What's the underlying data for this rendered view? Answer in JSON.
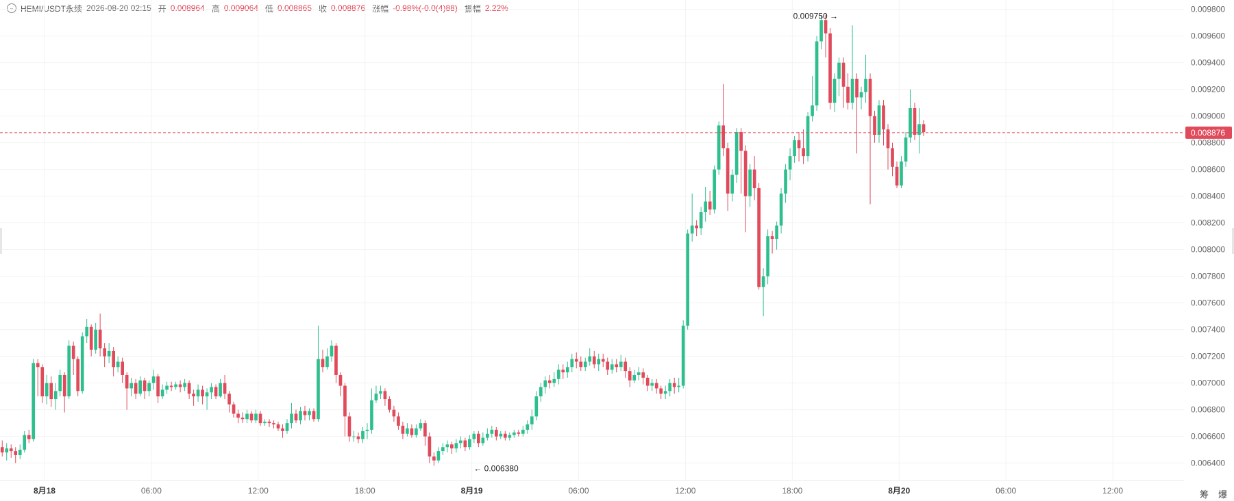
{
  "header": {
    "toggle_icon": "chevron-down-icon",
    "symbol": "HEMI/USDT永续",
    "datetime": "2026-08-20 02:15",
    "open_label": "开",
    "open": "0.008964",
    "high_label": "高",
    "high": "0.009064",
    "low_label": "低",
    "low": "0.008865",
    "close_label": "收",
    "close": "0.008876",
    "change_label": "涨幅",
    "change": "-0.98%(-0.0(4)88)",
    "amplitude_label": "振幅",
    "amplitude": "2.22%"
  },
  "bottom_right": {
    "label1": "筹",
    "label2": "爆"
  },
  "chart_data": {
    "type": "candlestick",
    "interval_minutes": 15,
    "y_axis_ticks": [
      "0.006400",
      "0.006600",
      "0.006800",
      "0.007000",
      "0.007200",
      "0.007400",
      "0.007600",
      "0.007800",
      "0.008000",
      "0.008200",
      "0.008400",
      "0.008600",
      "0.008800",
      "0.009000",
      "0.009200",
      "0.009400",
      "0.009600",
      "0.009800"
    ],
    "ylim": [
      0.00627,
      0.00987
    ],
    "x_axis_ticks": [
      {
        "label": "8月18",
        "time": "2026-08-18 00:00",
        "bold": true
      },
      {
        "label": "06:00",
        "time": "2026-08-18 06:00"
      },
      {
        "label": "12:00",
        "time": "2026-08-18 12:00"
      },
      {
        "label": "18:00",
        "time": "2026-08-18 18:00"
      },
      {
        "label": "8月19",
        "time": "2026-08-19 00:00",
        "bold": true
      },
      {
        "label": "06:00",
        "time": "2026-08-19 06:00"
      },
      {
        "label": "12:00",
        "time": "2026-08-19 12:00"
      },
      {
        "label": "18:00",
        "time": "2026-08-19 18:00"
      },
      {
        "label": "8月20",
        "time": "2026-08-20 00:00",
        "bold": true
      },
      {
        "label": "06:00",
        "time": "2026-08-20 06:00"
      },
      {
        "label": "12:00",
        "time": "2026-08-20 12:00"
      }
    ],
    "xlim": [
      "2026-08-17 21:30",
      "2026-08-20 16:00"
    ],
    "current_price": "0.008876",
    "annotations": [
      {
        "text": "0.009750",
        "price": 0.00975,
        "time": "2026-08-19 20:45",
        "arrow": "right"
      },
      {
        "text": "0.006380",
        "price": 0.00638,
        "time": "2026-08-18 23:45",
        "arrow": "left"
      }
    ],
    "colors": {
      "up": "#2fbf8f",
      "down": "#e04a5a",
      "grid": "#f3f3f3",
      "axis_text": "#666666"
    },
    "candles": [
      [
        0.00652,
        0.00648,
        0.00657,
        0.00645
      ],
      [
        0.00648,
        0.00651,
        0.00655,
        0.00642
      ],
      [
        0.00651,
        0.00649,
        0.00654,
        0.00644
      ],
      [
        0.00649,
        0.00646,
        0.00652,
        0.0064
      ],
      [
        0.00646,
        0.0065,
        0.00654,
        0.00643
      ],
      [
        0.0065,
        0.00661,
        0.00664,
        0.00648
      ],
      [
        0.00661,
        0.00658,
        0.00665,
        0.00655
      ],
      [
        0.00658,
        0.00715,
        0.00718,
        0.00656
      ],
      [
        0.00715,
        0.00712,
        0.00718,
        0.0069
      ],
      [
        0.00712,
        0.0069,
        0.00714,
        0.00685
      ],
      [
        0.0069,
        0.007,
        0.00706,
        0.00684
      ],
      [
        0.007,
        0.00688,
        0.00705,
        0.00682
      ],
      [
        0.00688,
        0.00694,
        0.007,
        0.0068
      ],
      [
        0.00694,
        0.00706,
        0.0071,
        0.0069
      ],
      [
        0.00706,
        0.0069,
        0.00708,
        0.00678
      ],
      [
        0.0069,
        0.00728,
        0.00732,
        0.00688
      ],
      [
        0.00728,
        0.00718,
        0.00731,
        0.00706
      ],
      [
        0.00718,
        0.00694,
        0.0072,
        0.0069
      ],
      [
        0.00694,
        0.00735,
        0.00738,
        0.00692
      ],
      [
        0.00735,
        0.00742,
        0.00748,
        0.0073
      ],
      [
        0.00742,
        0.00725,
        0.00744,
        0.0072
      ],
      [
        0.00725,
        0.0074,
        0.00745,
        0.00722
      ],
      [
        0.0074,
        0.00726,
        0.00752,
        0.0072
      ],
      [
        0.00726,
        0.0072,
        0.0073,
        0.00712
      ],
      [
        0.0072,
        0.00724,
        0.0073,
        0.00715
      ],
      [
        0.00724,
        0.00712,
        0.00727,
        0.00705
      ],
      [
        0.00712,
        0.00716,
        0.0072,
        0.00708
      ],
      [
        0.00716,
        0.00706,
        0.00719,
        0.007
      ],
      [
        0.00706,
        0.00696,
        0.00708,
        0.0068
      ],
      [
        0.00696,
        0.007,
        0.00704,
        0.0069
      ],
      [
        0.007,
        0.00692,
        0.00703,
        0.00688
      ],
      [
        0.00692,
        0.00702,
        0.00705,
        0.0069
      ],
      [
        0.00702,
        0.00694,
        0.00704,
        0.00688
      ],
      [
        0.00694,
        0.007,
        0.00702,
        0.0069
      ],
      [
        0.007,
        0.00705,
        0.0071,
        0.00695
      ],
      [
        0.00705,
        0.0069,
        0.00707,
        0.00685
      ],
      [
        0.0069,
        0.00695,
        0.00699,
        0.00688
      ],
      [
        0.00695,
        0.00698,
        0.00701,
        0.00692
      ],
      [
        0.00698,
        0.00697,
        0.00701,
        0.00694
      ],
      [
        0.00697,
        0.00699,
        0.00701,
        0.00695
      ],
      [
        0.00699,
        0.00697,
        0.00702,
        0.00693
      ],
      [
        0.00697,
        0.007,
        0.00703,
        0.00694
      ],
      [
        0.007,
        0.00692,
        0.00702,
        0.00688
      ],
      [
        0.00692,
        0.0069,
        0.00695,
        0.00683
      ],
      [
        0.0069,
        0.00695,
        0.00699,
        0.00686
      ],
      [
        0.00695,
        0.0069,
        0.00698,
        0.00684
      ],
      [
        0.0069,
        0.00693,
        0.00696,
        0.0068
      ],
      [
        0.00693,
        0.00697,
        0.007,
        0.00688
      ],
      [
        0.00697,
        0.0069,
        0.00699,
        0.00688
      ],
      [
        0.0069,
        0.007,
        0.00703,
        0.00689
      ],
      [
        0.007,
        0.00692,
        0.00706,
        0.00688
      ],
      [
        0.00692,
        0.00684,
        0.00694,
        0.00678
      ],
      [
        0.00684,
        0.00677,
        0.00686,
        0.00674
      ],
      [
        0.00677,
        0.00674,
        0.0068,
        0.0067
      ],
      [
        0.00674,
        0.00673,
        0.00678,
        0.0067
      ],
      [
        0.00673,
        0.00677,
        0.0068,
        0.0067
      ],
      [
        0.00677,
        0.00672,
        0.00679,
        0.0067
      ],
      [
        0.00672,
        0.00677,
        0.0068,
        0.0067
      ],
      [
        0.00677,
        0.0067,
        0.00679,
        0.00668
      ],
      [
        0.0067,
        0.00671,
        0.00673,
        0.00668
      ],
      [
        0.00671,
        0.0067,
        0.00673,
        0.00667
      ],
      [
        0.0067,
        0.00669,
        0.00672,
        0.00666
      ],
      [
        0.00669,
        0.00666,
        0.00671,
        0.00664
      ],
      [
        0.00666,
        0.00664,
        0.00669,
        0.00659
      ],
      [
        0.00664,
        0.0067,
        0.00673,
        0.00662
      ],
      [
        0.0067,
        0.00677,
        0.00685,
        0.00666
      ],
      [
        0.00677,
        0.00672,
        0.0068,
        0.0067
      ],
      [
        0.00672,
        0.00679,
        0.00682,
        0.00669
      ],
      [
        0.00679,
        0.00676,
        0.00683,
        0.00672
      ],
      [
        0.00676,
        0.00679,
        0.00681,
        0.00672
      ],
      [
        0.00679,
        0.00673,
        0.00681,
        0.00671
      ],
      [
        0.00673,
        0.00718,
        0.00743,
        0.00671
      ],
      [
        0.00718,
        0.00712,
        0.00725,
        0.00708
      ],
      [
        0.00712,
        0.0072,
        0.00726,
        0.0071
      ],
      [
        0.0072,
        0.00728,
        0.00732,
        0.00716
      ],
      [
        0.00728,
        0.00706,
        0.0073,
        0.007
      ],
      [
        0.00706,
        0.00698,
        0.00708,
        0.0069
      ],
      [
        0.00698,
        0.00675,
        0.007,
        0.0066
      ],
      [
        0.00675,
        0.0066,
        0.00678,
        0.00656
      ],
      [
        0.0066,
        0.0066,
        0.00664,
        0.00656
      ],
      [
        0.0066,
        0.00658,
        0.00663,
        0.00655
      ],
      [
        0.00658,
        0.00664,
        0.00667,
        0.00655
      ],
      [
        0.00664,
        0.00665,
        0.0067,
        0.00658
      ],
      [
        0.00665,
        0.00687,
        0.00696,
        0.00662
      ],
      [
        0.00687,
        0.00692,
        0.00698,
        0.00685
      ],
      [
        0.00692,
        0.00694,
        0.00698,
        0.00688
      ],
      [
        0.00694,
        0.00688,
        0.00696,
        0.00683
      ],
      [
        0.00688,
        0.0068,
        0.0069,
        0.00678
      ],
      [
        0.0068,
        0.00675,
        0.00683,
        0.00671
      ],
      [
        0.00675,
        0.00668,
        0.00678,
        0.00665
      ],
      [
        0.00668,
        0.00662,
        0.00671,
        0.00658
      ],
      [
        0.00662,
        0.00666,
        0.0067,
        0.0066
      ],
      [
        0.00666,
        0.00661,
        0.00669,
        0.00659
      ],
      [
        0.00661,
        0.00666,
        0.00669,
        0.00659
      ],
      [
        0.00666,
        0.0067,
        0.00673,
        0.00664
      ],
      [
        0.0067,
        0.0066,
        0.00672,
        0.00653
      ],
      [
        0.0066,
        0.00645,
        0.00663,
        0.0064
      ],
      [
        0.00645,
        0.00642,
        0.00648,
        0.00638
      ],
      [
        0.00642,
        0.00649,
        0.00652,
        0.0064
      ],
      [
        0.00649,
        0.00652,
        0.00655,
        0.00646
      ],
      [
        0.00652,
        0.00654,
        0.00657,
        0.00648
      ],
      [
        0.00654,
        0.00651,
        0.00656,
        0.00647
      ],
      [
        0.00651,
        0.00655,
        0.00658,
        0.00648
      ],
      [
        0.00655,
        0.00657,
        0.0066,
        0.00651
      ],
      [
        0.00657,
        0.00652,
        0.00659,
        0.00649
      ],
      [
        0.00652,
        0.00658,
        0.00661,
        0.0065
      ],
      [
        0.00658,
        0.00662,
        0.00664,
        0.00655
      ],
      [
        0.00662,
        0.00655,
        0.00664,
        0.00652
      ],
      [
        0.00655,
        0.00659,
        0.00663,
        0.00653
      ],
      [
        0.00659,
        0.00662,
        0.00666,
        0.00657
      ],
      [
        0.00662,
        0.00665,
        0.00668,
        0.00659
      ],
      [
        0.00665,
        0.0066,
        0.00667,
        0.00657
      ],
      [
        0.0066,
        0.00662,
        0.00664,
        0.00658
      ],
      [
        0.00662,
        0.00659,
        0.00664,
        0.00657
      ],
      [
        0.00659,
        0.00661,
        0.00663,
        0.00657
      ],
      [
        0.00661,
        0.00663,
        0.00665,
        0.00659
      ],
      [
        0.00663,
        0.00662,
        0.00665,
        0.0066
      ],
      [
        0.00662,
        0.00665,
        0.00668,
        0.0066
      ],
      [
        0.00665,
        0.00669,
        0.00672,
        0.00662
      ],
      [
        0.00669,
        0.00675,
        0.0068,
        0.00665
      ],
      [
        0.00675,
        0.0069,
        0.00694,
        0.00672
      ],
      [
        0.0069,
        0.00697,
        0.007,
        0.00686
      ],
      [
        0.00697,
        0.00702,
        0.00705,
        0.00692
      ],
      [
        0.00702,
        0.007,
        0.00706,
        0.00696
      ],
      [
        0.007,
        0.00703,
        0.00708,
        0.00697
      ],
      [
        0.00703,
        0.0071,
        0.00714,
        0.00699
      ],
      [
        0.0071,
        0.00708,
        0.00714,
        0.00703
      ],
      [
        0.00708,
        0.00712,
        0.00716,
        0.00704
      ],
      [
        0.00712,
        0.00718,
        0.00722,
        0.00708
      ],
      [
        0.00718,
        0.00716,
        0.00723,
        0.00711
      ],
      [
        0.00716,
        0.00712,
        0.0072,
        0.00709
      ],
      [
        0.00712,
        0.00716,
        0.00719,
        0.00709
      ],
      [
        0.00716,
        0.0072,
        0.00726,
        0.00713
      ],
      [
        0.0072,
        0.00714,
        0.00724,
        0.00711
      ],
      [
        0.00714,
        0.00718,
        0.00722,
        0.00709
      ],
      [
        0.00718,
        0.00716,
        0.00722,
        0.00712
      ],
      [
        0.00716,
        0.0071,
        0.00719,
        0.00706
      ],
      [
        0.0071,
        0.00714,
        0.00718,
        0.00707
      ],
      [
        0.00714,
        0.00712,
        0.00718,
        0.00708
      ],
      [
        0.00712,
        0.00716,
        0.00721,
        0.00709
      ],
      [
        0.00716,
        0.00709,
        0.00719,
        0.00704
      ],
      [
        0.00709,
        0.00702,
        0.00712,
        0.00697
      ],
      [
        0.00702,
        0.00706,
        0.0071,
        0.007
      ],
      [
        0.00706,
        0.00708,
        0.00712,
        0.00702
      ],
      [
        0.00708,
        0.00704,
        0.00711,
        0.00699
      ],
      [
        0.00704,
        0.00698,
        0.00706,
        0.00694
      ],
      [
        0.00698,
        0.007,
        0.00703,
        0.00694
      ],
      [
        0.007,
        0.00696,
        0.00703,
        0.00692
      ],
      [
        0.00696,
        0.00692,
        0.00698,
        0.00688
      ],
      [
        0.00692,
        0.00694,
        0.00698,
        0.00688
      ],
      [
        0.00694,
        0.007,
        0.00703,
        0.0069
      ],
      [
        0.007,
        0.00697,
        0.00704,
        0.00692
      ],
      [
        0.00697,
        0.00698,
        0.00704,
        0.00693
      ],
      [
        0.00698,
        0.00743,
        0.00747,
        0.00696
      ],
      [
        0.00743,
        0.00812,
        0.00815,
        0.0074
      ],
      [
        0.00812,
        0.00818,
        0.00842,
        0.00806
      ],
      [
        0.00818,
        0.00816,
        0.00822,
        0.0081
      ],
      [
        0.00816,
        0.00828,
        0.00832,
        0.00811
      ],
      [
        0.00828,
        0.00836,
        0.00847,
        0.00821
      ],
      [
        0.00836,
        0.0083,
        0.00844,
        0.00826
      ],
      [
        0.0083,
        0.0086,
        0.00863,
        0.00827
      ],
      [
        0.0086,
        0.00893,
        0.00896,
        0.00856
      ],
      [
        0.00893,
        0.00876,
        0.00924,
        0.0087
      ],
      [
        0.00876,
        0.00842,
        0.0088,
        0.00829
      ],
      [
        0.00842,
        0.00856,
        0.0086,
        0.00836
      ],
      [
        0.00856,
        0.00888,
        0.00891,
        0.0085
      ],
      [
        0.00888,
        0.00874,
        0.00891,
        0.00842
      ],
      [
        0.00874,
        0.0084,
        0.00878,
        0.00813
      ],
      [
        0.0084,
        0.0086,
        0.00864,
        0.00832
      ],
      [
        0.0086,
        0.00846,
        0.0087,
        0.00837
      ],
      [
        0.00846,
        0.00772,
        0.0085,
        0.0077
      ],
      [
        0.00772,
        0.0078,
        0.00786,
        0.0075
      ],
      [
        0.0078,
        0.0081,
        0.00815,
        0.00774
      ],
      [
        0.0081,
        0.00808,
        0.00814,
        0.00797
      ],
      [
        0.00808,
        0.00818,
        0.00821,
        0.008
      ],
      [
        0.00818,
        0.00842,
        0.00846,
        0.00812
      ],
      [
        0.00842,
        0.0086,
        0.00864,
        0.00835
      ],
      [
        0.0086,
        0.0087,
        0.00876,
        0.00852
      ],
      [
        0.0087,
        0.00882,
        0.00885,
        0.00865
      ],
      [
        0.00882,
        0.00876,
        0.00888,
        0.00866
      ],
      [
        0.00876,
        0.0087,
        0.0089,
        0.00864
      ],
      [
        0.0087,
        0.009,
        0.00903,
        0.00866
      ],
      [
        0.009,
        0.00908,
        0.0093,
        0.00896
      ],
      [
        0.00908,
        0.00956,
        0.0096,
        0.00904
      ],
      [
        0.00956,
        0.00972,
        0.00975,
        0.0095
      ],
      [
        0.00972,
        0.00962,
        0.00976,
        0.00944
      ],
      [
        0.00962,
        0.0091,
        0.00966,
        0.00905
      ],
      [
        0.0091,
        0.00928,
        0.00932,
        0.00903
      ],
      [
        0.00928,
        0.0094,
        0.00944,
        0.00915
      ],
      [
        0.0094,
        0.00922,
        0.00944,
        0.00906
      ],
      [
        0.00922,
        0.0091,
        0.00932,
        0.00905
      ],
      [
        0.0091,
        0.00928,
        0.00968,
        0.00905
      ],
      [
        0.00928,
        0.00914,
        0.00932,
        0.00872
      ],
      [
        0.00914,
        0.00918,
        0.00922,
        0.00905
      ],
      [
        0.00918,
        0.00928,
        0.00946,
        0.0091
      ],
      [
        0.00928,
        0.009,
        0.00932,
        0.00834
      ],
      [
        0.009,
        0.00886,
        0.00904,
        0.0088
      ],
      [
        0.00886,
        0.00908,
        0.00912,
        0.0088
      ],
      [
        0.00908,
        0.0089,
        0.00912,
        0.00878
      ],
      [
        0.0089,
        0.00876,
        0.00894,
        0.0086
      ],
      [
        0.00876,
        0.00862,
        0.0088,
        0.00855
      ],
      [
        0.00862,
        0.00848,
        0.00866,
        0.00846
      ],
      [
        0.00848,
        0.00866,
        0.0087,
        0.00846
      ],
      [
        0.00866,
        0.00884,
        0.00888,
        0.00862
      ],
      [
        0.00884,
        0.00906,
        0.0092,
        0.0088
      ],
      [
        0.00906,
        0.00886,
        0.0091,
        0.00882
      ],
      [
        0.00886,
        0.00894,
        0.00906,
        0.00872
      ],
      [
        0.00894,
        0.00888,
        0.00897,
        0.00885
      ]
    ]
  }
}
